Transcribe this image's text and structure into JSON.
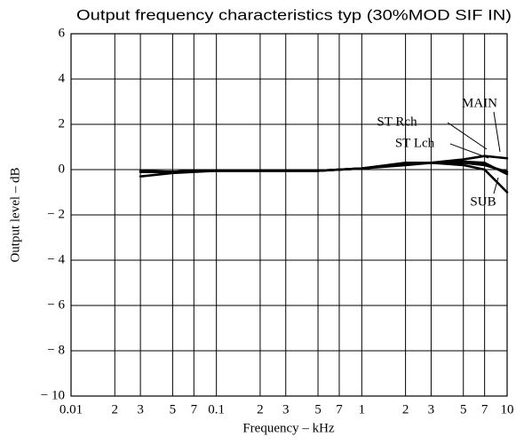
{
  "chart_data": {
    "type": "line",
    "title": "Output frequency characteristics typ (30%MOD SIF IN)",
    "x_label": "Frequency  –  kHz",
    "y_label": "Output level  –  dB",
    "x_scale": "log",
    "xlim": [
      0.01,
      10
    ],
    "ylim": [
      -10,
      6
    ],
    "xticks": [
      0.01,
      {
        "value": 0.02,
        "label": "2"
      },
      {
        "value": 0.03,
        "label": "3"
      },
      {
        "value": 0.05,
        "label": "5"
      },
      {
        "value": 0.07,
        "label": "7"
      },
      0.1,
      {
        "value": 0.2,
        "label": "2"
      },
      {
        "value": 0.3,
        "label": "3"
      },
      {
        "value": 0.5,
        "label": "5"
      },
      {
        "value": 0.7,
        "label": "7"
      },
      1,
      {
        "value": 2,
        "label": "2"
      },
      {
        "value": 3,
        "label": "3"
      },
      {
        "value": 5,
        "label": "5"
      },
      {
        "value": 7,
        "label": "7"
      },
      10
    ],
    "yticks": [
      6,
      4,
      2,
      0,
      {
        "value": -2,
        "label": "− 2"
      },
      {
        "value": -4,
        "label": "− 4"
      },
      {
        "value": -6,
        "label": "− 6"
      },
      {
        "value": -8,
        "label": "− 8"
      },
      {
        "value": -10,
        "label": "− 10"
      }
    ],
    "grid": true,
    "x": [
      0.03,
      0.05,
      0.07,
      0.1,
      0.2,
      0.3,
      0.5,
      0.7,
      1,
      2,
      3,
      5,
      7,
      10
    ],
    "series": [
      {
        "name": "MAIN",
        "color": "#000000",
        "values": [
          -0.1,
          -0.1,
          -0.05,
          -0.05,
          -0.05,
          -0.05,
          -0.05,
          0,
          0.05,
          0.2,
          0.3,
          0.45,
          0.6,
          0.5
        ]
      },
      {
        "name": "ST Rch",
        "color": "#000000",
        "values": [
          -0.1,
          -0.1,
          -0.05,
          -0.05,
          -0.05,
          -0.05,
          -0.05,
          0,
          0.05,
          0.25,
          0.3,
          0.35,
          0.3,
          -0.2
        ]
      },
      {
        "name": "ST Lch",
        "color": "#000000",
        "values": [
          -0.05,
          -0.1,
          -0.05,
          -0.05,
          -0.05,
          -0.05,
          -0.05,
          0,
          0.05,
          0.25,
          0.3,
          0.3,
          0.2,
          -0.1
        ]
      },
      {
        "name": "SUB",
        "color": "#000000",
        "values": [
          -0.3,
          -0.15,
          -0.1,
          -0.05,
          -0.05,
          -0.05,
          -0.05,
          0,
          0.05,
          0.3,
          0.3,
          0.2,
          0,
          -1.0
        ]
      }
    ]
  }
}
